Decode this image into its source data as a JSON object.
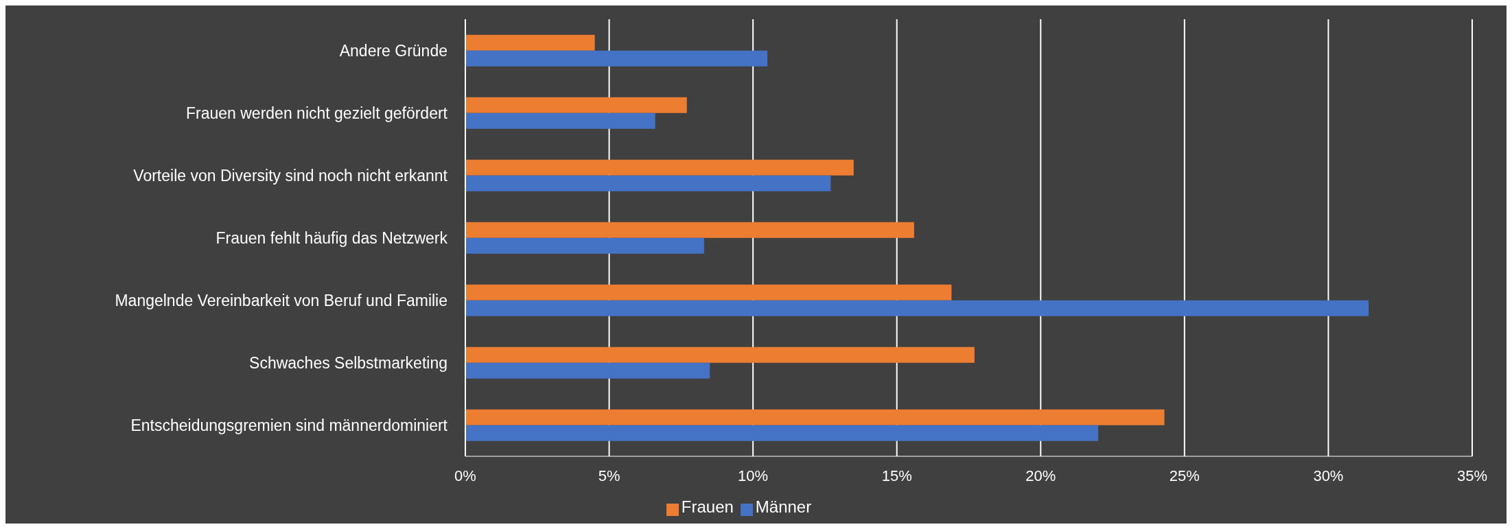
{
  "chart_data": {
    "type": "bar",
    "orientation": "horizontal",
    "categories": [
      "Andere Gründe",
      "Frauen werden nicht gezielt gefördert",
      "Vorteile von Diversity sind noch nicht erkannt",
      "Frauen fehlt häufig das Netzwerk",
      "Mangelnde Vereinbarkeit von Beruf und Familie",
      "Schwaches Selbstmarketing",
      "Entscheidungsgremien sind männerdominiert"
    ],
    "series": [
      {
        "name": "Frauen",
        "color": "#ed7d31",
        "values": [
          4.5,
          7.7,
          13.5,
          15.6,
          16.9,
          17.7,
          24.3
        ]
      },
      {
        "name": "Männer",
        "color": "#4472c4",
        "values": [
          10.5,
          6.6,
          12.7,
          8.3,
          31.4,
          8.5,
          22.0
        ]
      }
    ],
    "xlim": [
      0,
      35
    ],
    "xticks": [
      {
        "value": 0,
        "label": "0%"
      },
      {
        "value": 5,
        "label": "5%"
      },
      {
        "value": 10,
        "label": "10%"
      },
      {
        "value": 15,
        "label": "15%"
      },
      {
        "value": 20,
        "label": "20%"
      },
      {
        "value": 25,
        "label": "25%"
      },
      {
        "value": 30,
        "label": "30%"
      },
      {
        "value": 35,
        "label": "35%"
      }
    ],
    "grid": "x",
    "legend": "bottom"
  }
}
